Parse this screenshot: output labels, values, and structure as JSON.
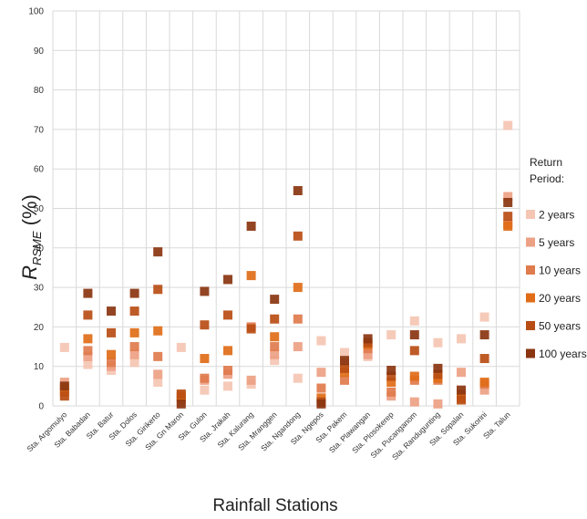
{
  "chart_data": {
    "type": "scatter",
    "ylabel": {
      "main": "R",
      "sub": "RSME",
      "unit": " (%)"
    },
    "xlabel": "Rainfall Stations",
    "ylim": [
      0,
      100
    ],
    "yticks": [
      0,
      10,
      20,
      30,
      40,
      50,
      60,
      70,
      80,
      90,
      100
    ],
    "grid": true,
    "legend_title": [
      "Return",
      "Period:"
    ],
    "legend_position": "right",
    "categories": [
      "Sta. Argomulyo",
      "Sta. Babadan",
      "Sta. Batur",
      "Sta. Dolos",
      "Sta. Girikerto",
      "Sta. Gn Maron",
      "Sta. Gulon",
      "Sta. Jrakah",
      "Sta. Kalurang",
      "Sta. Mranggen",
      "Sta. Ngandong",
      "Sta. Ngepos",
      "Sta. Pakem",
      "Sta. Plawangan",
      "Sta. Plosokerep",
      "Sta. Pucanganom",
      "Sta. Randugunting",
      "Sta. Sopalan",
      "Sta. Sukorini",
      "Sta. Talun"
    ],
    "series": [
      {
        "name": "2 years",
        "color": "#f5c6b3",
        "values": [
          14.8,
          10.5,
          9.0,
          11.0,
          6.0,
          14.8,
          4.0,
          5.0,
          5.5,
          11.5,
          7.0,
          16.5,
          13.5,
          12.5,
          18.0,
          21.5,
          16.0,
          17.0,
          22.5,
          71.0
        ]
      },
      {
        "name": "5 years",
        "color": "#eda184",
        "values": [
          6.0,
          12.5,
          10.0,
          13.0,
          8.0,
          1.0,
          6.5,
          8.0,
          6.5,
          13.0,
          15.0,
          8.5,
          11.0,
          13.0,
          2.5,
          1.0,
          0.5,
          8.5,
          4.0,
          53.0
        ]
      },
      {
        "name": "10 years",
        "color": "#e07b4d",
        "values": [
          4.5,
          14.0,
          11.0,
          15.0,
          12.5,
          2.0,
          7.0,
          9.0,
          20.0,
          15.0,
          22.0,
          4.5,
          6.5,
          14.5,
          3.5,
          6.5,
          6.5,
          3.0,
          5.5,
          46.0
        ]
      },
      {
        "name": "20 years",
        "color": "#e06c17",
        "values": [
          3.5,
          17.0,
          13.0,
          18.5,
          19.0,
          2.5,
          12.0,
          14.0,
          33.0,
          17.5,
          30.0,
          2.0,
          8.5,
          15.5,
          6.0,
          7.5,
          7.0,
          2.0,
          6.0,
          45.5
        ]
      },
      {
        "name": "50 years",
        "color": "#b84d14",
        "values": [
          2.5,
          23.0,
          18.5,
          24.0,
          29.5,
          3.0,
          20.5,
          23.0,
          19.5,
          22.0,
          43.0,
          1.0,
          9.5,
          16.0,
          7.5,
          14.0,
          8.0,
          1.5,
          12.0,
          48.0
        ]
      },
      {
        "name": "100 years",
        "color": "#8a3510",
        "values": [
          5.0,
          28.5,
          24.0,
          28.5,
          39.0,
          0.5,
          29.0,
          32.0,
          45.5,
          27.0,
          54.5,
          0.5,
          11.5,
          17.0,
          9.0,
          18.0,
          9.5,
          4.0,
          18.0,
          51.5
        ]
      }
    ]
  }
}
